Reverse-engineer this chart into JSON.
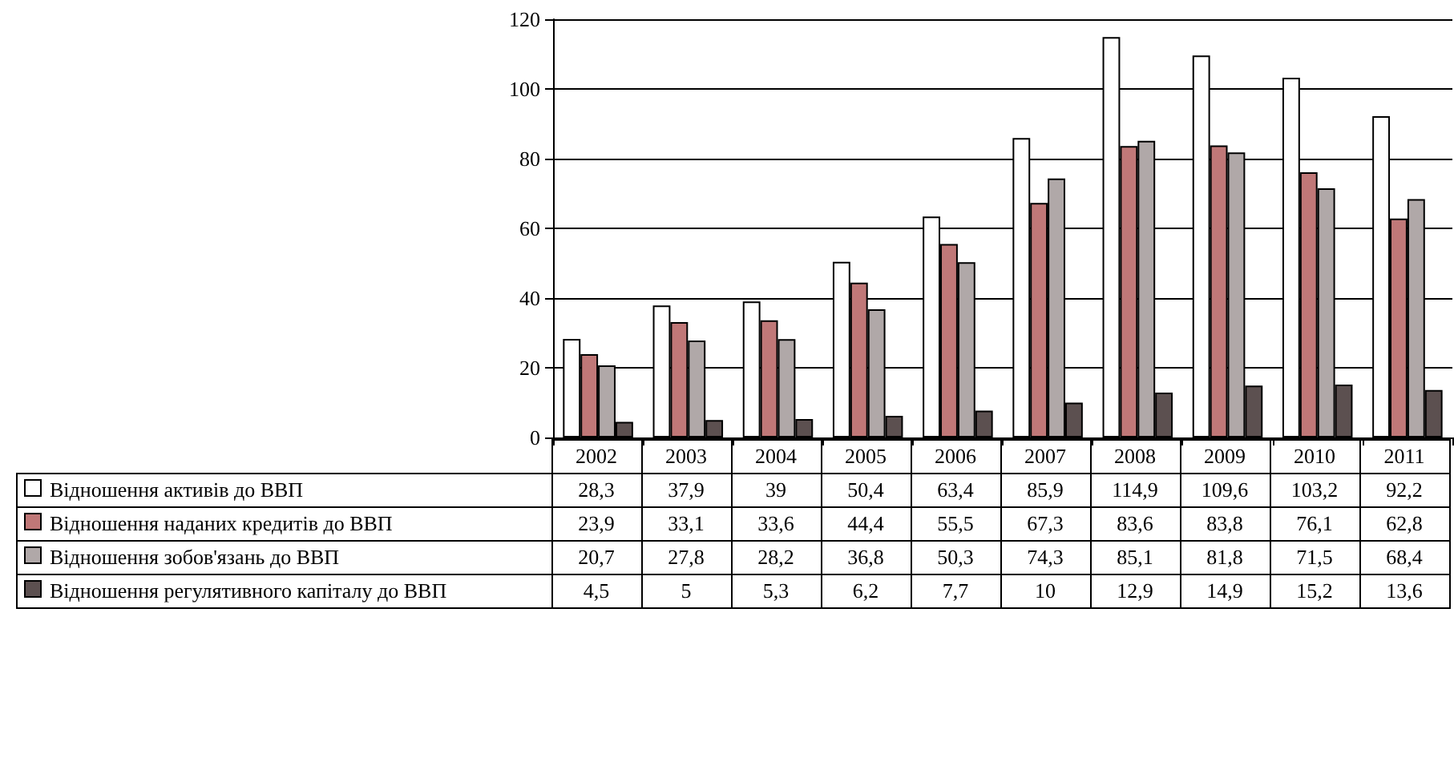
{
  "chart_data": {
    "type": "bar",
    "categories": [
      "2002",
      "2003",
      "2004",
      "2005",
      "2006",
      "2007",
      "2008",
      "2009",
      "2010",
      "2011"
    ],
    "series": [
      {
        "name": "Відношення активів до ВВП",
        "color": "#ffffff",
        "values": [
          28.3,
          37.9,
          39,
          50.4,
          63.4,
          85.9,
          114.9,
          109.6,
          103.2,
          92.2
        ],
        "value_labels": [
          "28,3",
          "37,9",
          "39",
          "50,4",
          "63,4",
          "85,9",
          "114,9",
          "109,6",
          "103,2",
          "92,2"
        ]
      },
      {
        "name": "Відношення наданих кредитів до ВВП",
        "color": "#c07878",
        "values": [
          23.9,
          33.1,
          33.6,
          44.4,
          55.5,
          67.3,
          83.6,
          83.8,
          76.1,
          62.8
        ],
        "value_labels": [
          "23,9",
          "33,1",
          "33,6",
          "44,4",
          "55,5",
          "67,3",
          "83,6",
          "83,8",
          "76,1",
          "62,8"
        ]
      },
      {
        "name": "Відношення зобов'язань до ВВП",
        "color": "#b0a8a8",
        "values": [
          20.7,
          27.8,
          28.2,
          36.8,
          50.3,
          74.3,
          85.1,
          81.8,
          71.5,
          68.4
        ],
        "value_labels": [
          "20,7",
          "27,8",
          "28,2",
          "36,8",
          "50,3",
          "74,3",
          "85,1",
          "81,8",
          "71,5",
          "68,4"
        ]
      },
      {
        "name": "Відношення регулятивного капіталу до ВВП",
        "color": "#5c5050",
        "values": [
          4.5,
          5,
          5.3,
          6.2,
          7.7,
          10,
          12.9,
          14.9,
          15.2,
          13.6
        ],
        "value_labels": [
          "4,5",
          "5",
          "5,3",
          "6,2",
          "7,7",
          "10",
          "12,9",
          "14,9",
          "15,2",
          "13,6"
        ]
      }
    ],
    "ylim": [
      0,
      120
    ],
    "yticks": [
      0,
      20,
      40,
      60,
      80,
      100,
      120
    ],
    "grid": "y",
    "legend": "bottom left"
  }
}
